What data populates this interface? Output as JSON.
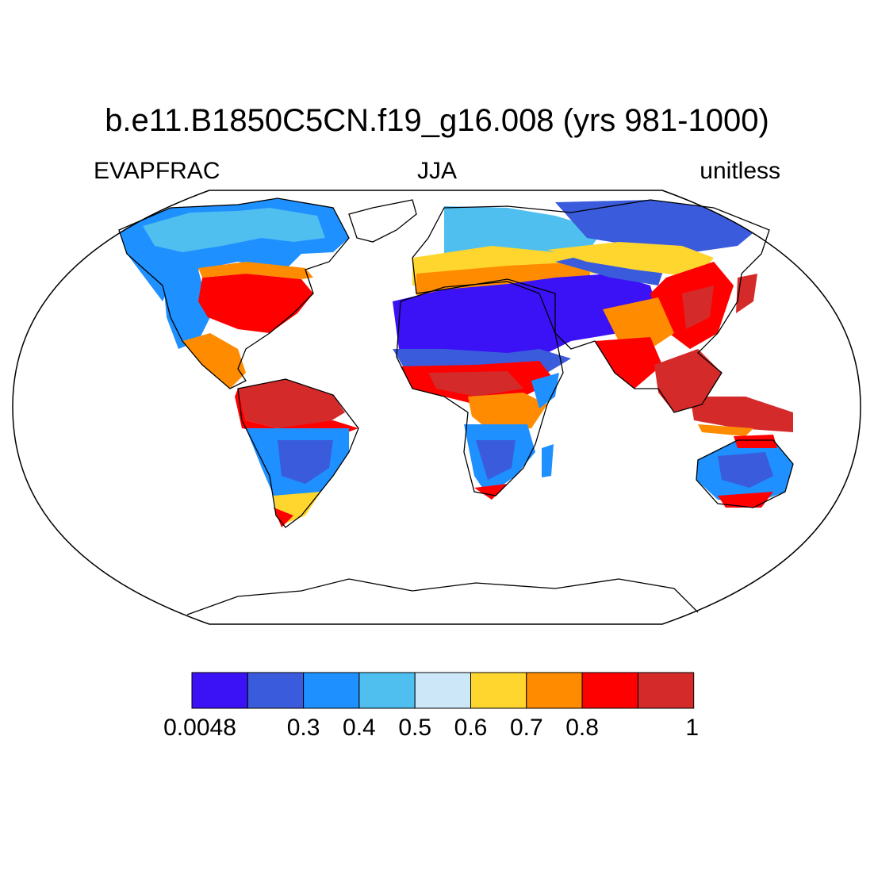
{
  "title": "b.e11.B1850C5CN.f19_g16.008 (yrs 981-1000)",
  "variable": "EVAPFRAC",
  "season": "JJA",
  "units": "unitless",
  "colorbar": {
    "colors": [
      "#3a12f5",
      "#3a5cdc",
      "#1e90ff",
      "#4fbff0",
      "#cce8f8",
      "#ffd62e",
      "#ff8c00",
      "#ff0000",
      "#d42a2a"
    ],
    "labels": [
      "0.0048",
      "0.3",
      "0.4",
      "0.5",
      "0.6",
      "0.7",
      "0.8",
      "1"
    ]
  },
  "map_data": {
    "projection": "robinson",
    "field": "evaporative fraction",
    "regions": [
      {
        "name": "Sahara / Arabia",
        "class": 0
      },
      {
        "name": "Central Asia deserts",
        "class": 0
      },
      {
        "name": "Australian interior",
        "class": 1
      },
      {
        "name": "Southern Africa interior",
        "class": 2
      },
      {
        "name": "Eastern South America",
        "class": 2
      },
      {
        "name": "Western North America",
        "class": 2
      },
      {
        "name": "Siberia",
        "class": 1
      },
      {
        "name": "Northern Canada",
        "class": 3
      },
      {
        "name": "Europe",
        "class": 4
      },
      {
        "name": "Sahel",
        "class": 7
      },
      {
        "name": "Eastern United States",
        "class": 7
      },
      {
        "name": "Amazon",
        "class": 8
      },
      {
        "name": "Southeast Asia / Maritime Continent",
        "class": 8
      },
      {
        "name": "India",
        "class": 7
      },
      {
        "name": "East China",
        "class": 7
      }
    ]
  }
}
